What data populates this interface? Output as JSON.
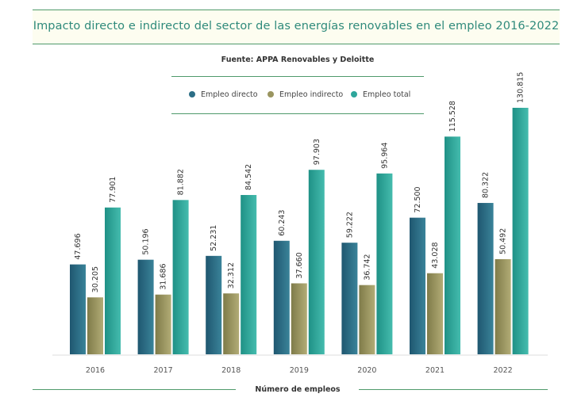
{
  "chart_data": {
    "type": "bar",
    "title": "Impacto directo e indirecto del sector de las energías renovables en el empleo 2016-2022",
    "subtitle": "Fuente: APPA Renovables y Deloitte",
    "xlabel": "Número de empleos",
    "ylabel": "",
    "categories": [
      "2016",
      "2017",
      "2018",
      "2019",
      "2020",
      "2021",
      "2022"
    ],
    "series": [
      {
        "name": "Empleo directo",
        "color": "#2c6e86",
        "values": [
          47696,
          50196,
          52231,
          60243,
          59222,
          72500,
          80322
        ],
        "labels": [
          "47.696",
          "50.196",
          "52.231",
          "60.243",
          "59.222",
          "72.500",
          "80.322"
        ]
      },
      {
        "name": "Empleo indirecto",
        "color": "#9a9560",
        "values": [
          30205,
          31686,
          32312,
          37660,
          36742,
          43028,
          50492
        ],
        "labels": [
          "30.205",
          "31.686",
          "32.312",
          "37.660",
          "36.742",
          "43.028",
          "50.492"
        ]
      },
      {
        "name": "Empleo total",
        "color": "#2ea69b",
        "values": [
          77901,
          81882,
          84542,
          97903,
          95964,
          115528,
          130815
        ],
        "labels": [
          "77.901",
          "81.882",
          "84.542",
          "97.903",
          "95.964",
          "115.528",
          "130.815"
        ]
      }
    ],
    "ylim": [
      0,
      130815
    ],
    "grid": false,
    "legend": "top-center"
  }
}
